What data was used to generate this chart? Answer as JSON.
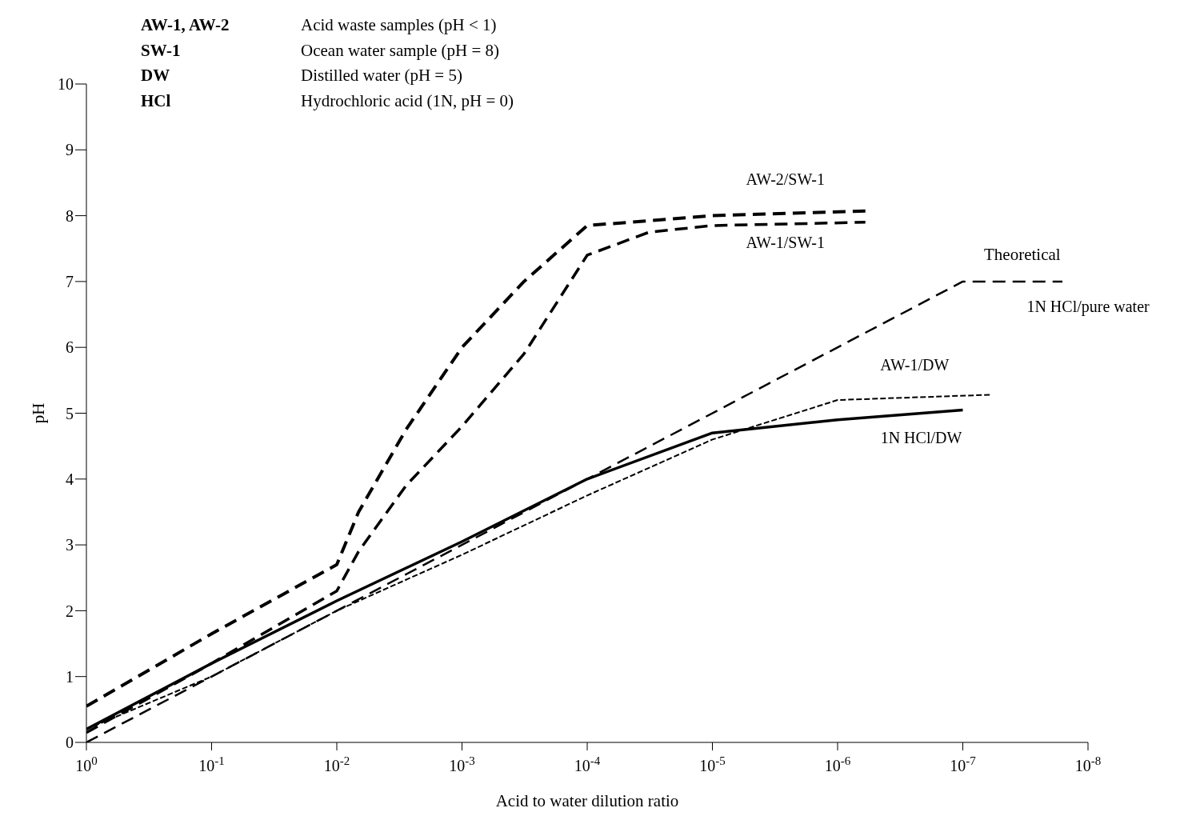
{
  "chart_data": {
    "type": "line",
    "xlabel": "Acid to water dilution ratio",
    "ylabel": "pH",
    "log": "x",
    "marker": "none",
    "xlim": [
      1,
      1e-08
    ],
    "xticks": [
      {
        "value": 1,
        "label": "10$^{0}$"
      },
      {
        "value": 0.1,
        "label": "10$^{-1}$"
      },
      {
        "value": 0.01,
        "label": "10$^{-2}$"
      },
      {
        "value": 0.001,
        "label": "10$^{-3}$"
      },
      {
        "value": 0.0001,
        "label": "10$^{-4}$"
      },
      {
        "value": 1e-05,
        "label": "10$^{-5}$"
      },
      {
        "value": 1e-06,
        "label": "10$^{-6}$"
      },
      {
        "value": 1e-07,
        "label": "10$^{-7}$"
      },
      {
        "value": 1e-08,
        "label": "10$^{-8}$"
      }
    ],
    "ylim": [
      0,
      10
    ],
    "yticks": [
      0,
      1,
      2,
      3,
      4,
      5,
      6,
      7,
      8,
      9,
      10
    ],
    "annotations": [
      "AW-1, AW-2",
      "Acid waste samples (pH < 1)",
      "SW-1",
      "Ocean water sample (pH = 8)",
      "DW",
      "Distilled water (pH = 5)",
      "HCl",
      "Hydrochloric acid (1N, pH = 0)",
      "Theoretical"
    ],
    "series": [
      {
        "name": "AW-2/SW-1",
        "color": "#000000",
        "line_style": "dashed",
        "x": [
          1,
          0.1,
          0.01,
          0.0067,
          0.0028,
          0.001,
          0.00032,
          0.0001,
          1e-05,
          6e-07
        ],
        "values": [
          0.55,
          1.65,
          2.7,
          3.5,
          4.75,
          6.0,
          7.0,
          7.85,
          8.0,
          8.07
        ]
      },
      {
        "name": "AW-1/SW-1",
        "color": "#000000",
        "line_style": "dashed",
        "x": [
          1,
          0.1,
          0.01,
          0.0067,
          0.0028,
          0.001,
          0.00032,
          0.0001,
          3.2e-05,
          1e-05,
          6e-07
        ],
        "values": [
          0.15,
          1.2,
          2.3,
          2.9,
          3.9,
          4.8,
          5.9,
          7.4,
          7.75,
          7.85,
          7.9
        ]
      },
      {
        "name": "1N HCl/pure water",
        "color": "#000000",
        "line_style": "dashed",
        "x": [
          1,
          1e-07,
          1.6e-08
        ],
        "values": [
          0,
          7,
          7
        ]
      },
      {
        "name": "AW-1/DW",
        "color": "#000000",
        "line_style": "dotted",
        "x": [
          1,
          0.1,
          0.01,
          0.001,
          0.0001,
          1e-05,
          1e-06,
          6e-08
        ],
        "values": [
          0.2,
          1.0,
          2.0,
          2.85,
          3.75,
          4.6,
          5.2,
          5.28
        ]
      },
      {
        "name": "1N HCl/DW",
        "color": "#000000",
        "line_style": "solid",
        "x": [
          1,
          0.1,
          0.01,
          0.001,
          0.0001,
          1e-05,
          1e-06,
          1e-07
        ],
        "values": [
          0.2,
          1.2,
          2.15,
          3.05,
          4.0,
          4.7,
          4.9,
          5.05
        ]
      }
    ]
  }
}
